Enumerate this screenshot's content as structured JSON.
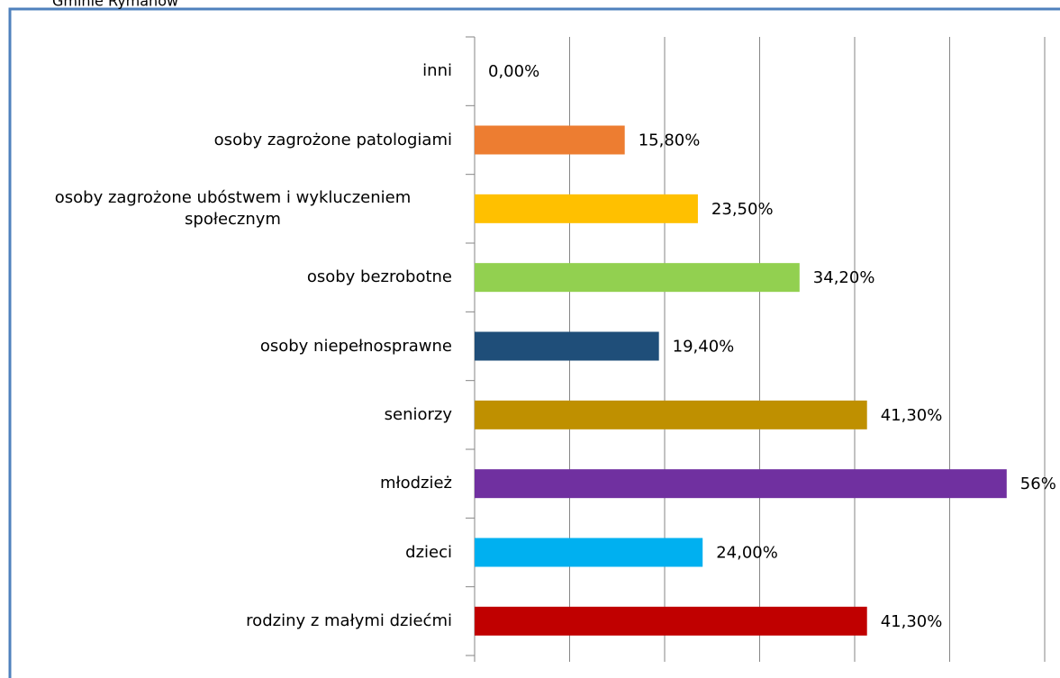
{
  "chart_data": {
    "type": "bar",
    "orientation": "horizontal",
    "title": "Gminie Rymanów",
    "categories": [
      "inni",
      "osoby zagrożone patologiami",
      "osoby zagrożone ubóstwem i wykluczeniem społecznym",
      "osoby bezrobotne",
      "osoby niepełnosprawne",
      "seniorzy",
      "młodzież",
      "dzieci",
      "rodziny z małymi dziećmi"
    ],
    "values": [
      0,
      15.8,
      23.5,
      34.2,
      19.4,
      41.3,
      56,
      24,
      41.3
    ],
    "value_labels": [
      "0,00%",
      "15,80%",
      "23,50%",
      "34,20%",
      "19,40%",
      "41,30%",
      "56%",
      "24,00%",
      "41,30%"
    ],
    "colors": [
      "#A5A5A5",
      "#ED7D31",
      "#FFC000",
      "#92D050",
      "#1F4E79",
      "#BF9000",
      "#7030A0",
      "#00B0F0",
      "#C00000"
    ],
    "xlim": [
      0,
      60
    ],
    "xticks": [
      0,
      10,
      20,
      30,
      40,
      50,
      60
    ],
    "grid": true
  }
}
